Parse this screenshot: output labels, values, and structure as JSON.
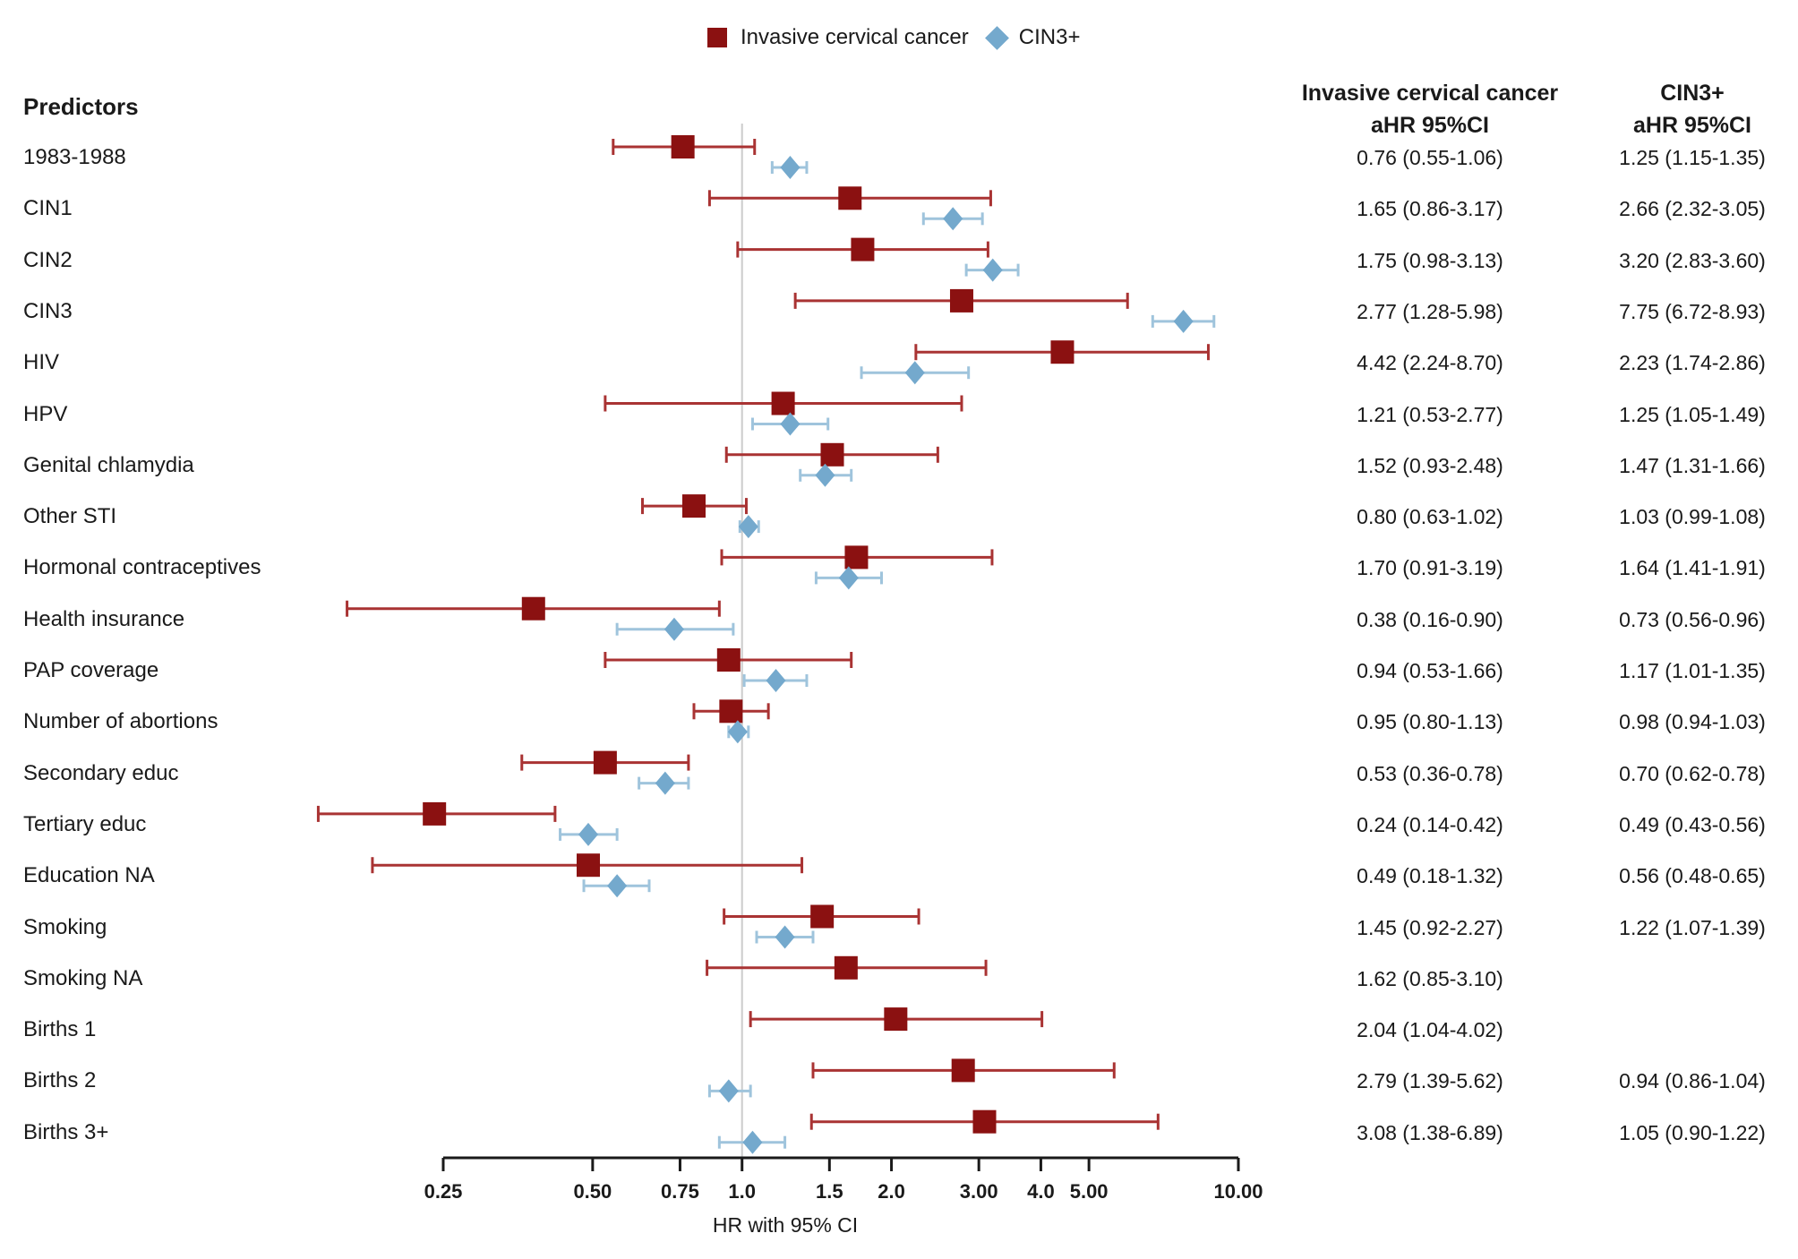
{
  "legend": {
    "items": [
      {
        "label": "Invasive cervical cancer",
        "marker": "square",
        "color": "#8B1111"
      },
      {
        "label": "CIN3+",
        "marker": "diamond",
        "color": "#74A9CD"
      }
    ]
  },
  "table": {
    "predictors_header": "Predictors",
    "col1_header_line1": "Invasive cervical cancer",
    "col1_header_line2": "aHR 95%CI",
    "col2_header_line1": "CIN3+",
    "col2_header_line2": "aHR 95%CI"
  },
  "chart_data": {
    "type": "scatter",
    "variant": "forest-plot",
    "series_names": [
      "Invasive cervical cancer",
      "CIN3+"
    ],
    "axis": {
      "xlabel": "HR with 95% CI",
      "scale": "log",
      "xlim": [
        0.25,
        10
      ],
      "reference_line": 1.0,
      "ticks": [
        {
          "value": 0.25,
          "label": "0.25"
        },
        {
          "value": 0.5,
          "label": "0.50"
        },
        {
          "value": 0.75,
          "label": "0.75"
        },
        {
          "value": 1.0,
          "label": "1.0"
        },
        {
          "value": 1.5,
          "label": "1.5"
        },
        {
          "value": 2.0,
          "label": "2.0"
        },
        {
          "value": 3.0,
          "label": "3.00"
        },
        {
          "value": 4.0,
          "label": "4.0"
        },
        {
          "value": 5.0,
          "label": "5.00"
        },
        {
          "value": 10.0,
          "label": "10.00"
        }
      ]
    },
    "colors": {
      "icc_marker": "#8B1111",
      "icc_line": "#A93333",
      "cin3_marker": "#74A9CD",
      "cin3_line": "#9FC4DC",
      "reference_line": "#CCCCCC",
      "axis": "#1A1A1A"
    },
    "rows": [
      {
        "label": "1983-1988",
        "icc": {
          "est": 0.76,
          "lo": 0.55,
          "hi": 1.06
        },
        "icc_text": "0.76 (0.55-1.06)",
        "cin3": {
          "est": 1.25,
          "lo": 1.15,
          "hi": 1.35
        },
        "cin3_text": "1.25 (1.15-1.35)"
      },
      {
        "label": "CIN1",
        "icc": {
          "est": 1.65,
          "lo": 0.86,
          "hi": 3.17
        },
        "icc_text": "1.65 (0.86-3.17)",
        "cin3": {
          "est": 2.66,
          "lo": 2.32,
          "hi": 3.05
        },
        "cin3_text": "2.66 (2.32-3.05)"
      },
      {
        "label": "CIN2",
        "icc": {
          "est": 1.75,
          "lo": 0.98,
          "hi": 3.13
        },
        "icc_text": "1.75 (0.98-3.13)",
        "cin3": {
          "est": 3.2,
          "lo": 2.83,
          "hi": 3.6
        },
        "cin3_text": "3.20 (2.83-3.60)"
      },
      {
        "label": "CIN3",
        "icc": {
          "est": 2.77,
          "lo": 1.28,
          "hi": 5.98
        },
        "icc_text": "2.77 (1.28-5.98)",
        "cin3": {
          "est": 7.75,
          "lo": 6.72,
          "hi": 8.93
        },
        "cin3_text": "7.75 (6.72-8.93)"
      },
      {
        "label": "HIV",
        "icc": {
          "est": 4.42,
          "lo": 2.24,
          "hi": 8.7
        },
        "icc_text": "4.42 (2.24-8.70)",
        "cin3": {
          "est": 2.23,
          "lo": 1.74,
          "hi": 2.86
        },
        "cin3_text": "2.23 (1.74-2.86)"
      },
      {
        "label": "HPV",
        "icc": {
          "est": 1.21,
          "lo": 0.53,
          "hi": 2.77
        },
        "icc_text": "1.21 (0.53-2.77)",
        "cin3": {
          "est": 1.25,
          "lo": 1.05,
          "hi": 1.49
        },
        "cin3_text": "1.25 (1.05-1.49)"
      },
      {
        "label": "Genital chlamydia",
        "icc": {
          "est": 1.52,
          "lo": 0.93,
          "hi": 2.48
        },
        "icc_text": "1.52 (0.93-2.48)",
        "cin3": {
          "est": 1.47,
          "lo": 1.31,
          "hi": 1.66
        },
        "cin3_text": "1.47 (1.31-1.66)"
      },
      {
        "label": "Other STI",
        "icc": {
          "est": 0.8,
          "lo": 0.63,
          "hi": 1.02
        },
        "icc_text": "0.80 (0.63-1.02)",
        "cin3": {
          "est": 1.03,
          "lo": 0.99,
          "hi": 1.08
        },
        "cin3_text": "1.03 (0.99-1.08)"
      },
      {
        "label": "Hormonal contraceptives",
        "icc": {
          "est": 1.7,
          "lo": 0.91,
          "hi": 3.19
        },
        "icc_text": "1.70 (0.91-3.19)",
        "cin3": {
          "est": 1.64,
          "lo": 1.41,
          "hi": 1.91
        },
        "cin3_text": "1.64 (1.41-1.91)"
      },
      {
        "label": "Health insurance",
        "icc": {
          "est": 0.38,
          "lo": 0.16,
          "hi": 0.9
        },
        "icc_text": "0.38 (0.16-0.90)",
        "cin3": {
          "est": 0.73,
          "lo": 0.56,
          "hi": 0.96
        },
        "cin3_text": "0.73 (0.56-0.96)"
      },
      {
        "label": "PAP coverage",
        "icc": {
          "est": 0.94,
          "lo": 0.53,
          "hi": 1.66
        },
        "icc_text": "0.94 (0.53-1.66)",
        "cin3": {
          "est": 1.17,
          "lo": 1.01,
          "hi": 1.35
        },
        "cin3_text": "1.17 (1.01-1.35)"
      },
      {
        "label": "Number of abortions",
        "icc": {
          "est": 0.95,
          "lo": 0.8,
          "hi": 1.13
        },
        "icc_text": "0.95 (0.80-1.13)",
        "cin3": {
          "est": 0.98,
          "lo": 0.94,
          "hi": 1.03
        },
        "cin3_text": "0.98 (0.94-1.03)"
      },
      {
        "label": "Secondary educ",
        "icc": {
          "est": 0.53,
          "lo": 0.36,
          "hi": 0.78
        },
        "icc_text": "0.53 (0.36-0.78)",
        "cin3": {
          "est": 0.7,
          "lo": 0.62,
          "hi": 0.78
        },
        "cin3_text": "0.70 (0.62-0.78)"
      },
      {
        "label": "Tertiary educ",
        "icc": {
          "est": 0.24,
          "lo": 0.14,
          "hi": 0.42
        },
        "icc_text": "0.24 (0.14-0.42)",
        "cin3": {
          "est": 0.49,
          "lo": 0.43,
          "hi": 0.56
        },
        "cin3_text": "0.49 (0.43-0.56)"
      },
      {
        "label": "Education NA",
        "icc": {
          "est": 0.49,
          "lo": 0.18,
          "hi": 1.32
        },
        "icc_text": "0.49 (0.18-1.32)",
        "cin3": {
          "est": 0.56,
          "lo": 0.48,
          "hi": 0.65
        },
        "cin3_text": "0.56 (0.48-0.65)"
      },
      {
        "label": "Smoking",
        "icc": {
          "est": 1.45,
          "lo": 0.92,
          "hi": 2.27
        },
        "icc_text": "1.45 (0.92-2.27)",
        "cin3": {
          "est": 1.22,
          "lo": 1.07,
          "hi": 1.39
        },
        "cin3_text": "1.22 (1.07-1.39)"
      },
      {
        "label": "Smoking NA",
        "icc": {
          "est": 1.62,
          "lo": 0.85,
          "hi": 3.1
        },
        "icc_text": "1.62 (0.85-3.10)",
        "cin3": null,
        "cin3_text": ""
      },
      {
        "label": "Births 1",
        "icc": {
          "est": 2.04,
          "lo": 1.04,
          "hi": 4.02
        },
        "icc_text": "2.04 (1.04-4.02)",
        "cin3": null,
        "cin3_text": ""
      },
      {
        "label": "Births 2",
        "icc": {
          "est": 2.79,
          "lo": 1.39,
          "hi": 5.62
        },
        "icc_text": "2.79 (1.39-5.62)",
        "cin3": {
          "est": 0.94,
          "lo": 0.86,
          "hi": 1.04
        },
        "cin3_text": "0.94 (0.86-1.04)"
      },
      {
        "label": "Births 3+",
        "icc": {
          "est": 3.08,
          "lo": 1.38,
          "hi": 6.89
        },
        "icc_text": "3.08 (1.38-6.89)",
        "cin3": {
          "est": 1.05,
          "lo": 0.9,
          "hi": 1.22
        },
        "cin3_text": "1.05 (0.90-1.22)"
      }
    ]
  }
}
